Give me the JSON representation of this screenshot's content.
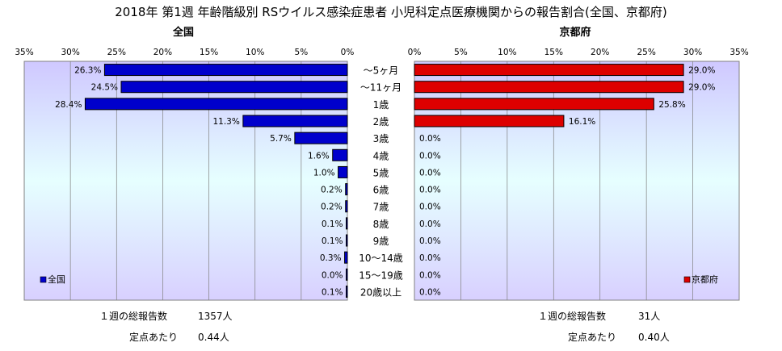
{
  "title": "2018年 第1週 年齢階級別 RSウイルス感染症患者 小児科定点医療機関からの報告割合(全国、京都府)",
  "chart_data": [
    {
      "type": "bar",
      "orientation": "horizontal",
      "direction": "right-to-left",
      "panel_title": "全国",
      "legend": "全国",
      "legend_position": "bottom-left",
      "color": "#0000cc",
      "xlim": [
        0,
        35
      ],
      "ticks": [
        "35%",
        "30%",
        "25%",
        "20%",
        "15%",
        "10%",
        "5%",
        "0%"
      ],
      "tick_values": [
        35,
        30,
        25,
        20,
        15,
        10,
        5,
        0
      ],
      "categories": [
        "～5ヶ月",
        "～11ヶ月",
        "1歳",
        "2歳",
        "3歳",
        "4歳",
        "5歳",
        "6歳",
        "7歳",
        "8歳",
        "9歳",
        "10～14歳",
        "15～19歳",
        "20歳以上"
      ],
      "values": [
        26.3,
        24.5,
        28.4,
        11.3,
        5.7,
        1.6,
        1.0,
        0.2,
        0.2,
        0.1,
        0.1,
        0.3,
        0.0,
        0.1
      ],
      "labels": [
        "26.3%",
        "24.5%",
        "28.4%",
        "11.3%",
        "5.7%",
        "1.6%",
        "1.0%",
        "0.2%",
        "0.2%",
        "0.1%",
        "0.1%",
        "0.3%",
        "0.0%",
        "0.1%"
      ]
    },
    {
      "type": "bar",
      "orientation": "horizontal",
      "direction": "left-to-right",
      "panel_title": "京都府",
      "legend": "京都府",
      "legend_position": "bottom-right",
      "color": "#dd0000",
      "xlim": [
        0,
        35
      ],
      "ticks": [
        "0%",
        "5%",
        "10%",
        "15%",
        "20%",
        "25%",
        "30%",
        "35%"
      ],
      "tick_values": [
        0,
        5,
        10,
        15,
        20,
        25,
        30,
        35
      ],
      "categories": [
        "～5ヶ月",
        "～11ヶ月",
        "1歳",
        "2歳",
        "3歳",
        "4歳",
        "5歳",
        "6歳",
        "7歳",
        "8歳",
        "9歳",
        "10～14歳",
        "15～19歳",
        "20歳以上"
      ],
      "values": [
        29.0,
        29.0,
        25.8,
        16.1,
        0.0,
        0.0,
        0.0,
        0.0,
        0.0,
        0.0,
        0.0,
        0.0,
        0.0,
        0.0
      ],
      "labels": [
        "29.0%",
        "29.0%",
        "25.8%",
        "16.1%",
        "0.0%",
        "0.0%",
        "0.0%",
        "0.0%",
        "0.0%",
        "0.0%",
        "0.0%",
        "0.0%",
        "0.0%",
        "0.0%"
      ]
    }
  ],
  "footer": {
    "left": {
      "total_label": "１週の総報告数",
      "total_value": "1357人",
      "per_label": "定点あたり",
      "per_value": "0.44人"
    },
    "right": {
      "total_label": "１週の総報告数",
      "total_value": "31人",
      "per_label": "定点あたり",
      "per_value": "0.40人"
    }
  }
}
